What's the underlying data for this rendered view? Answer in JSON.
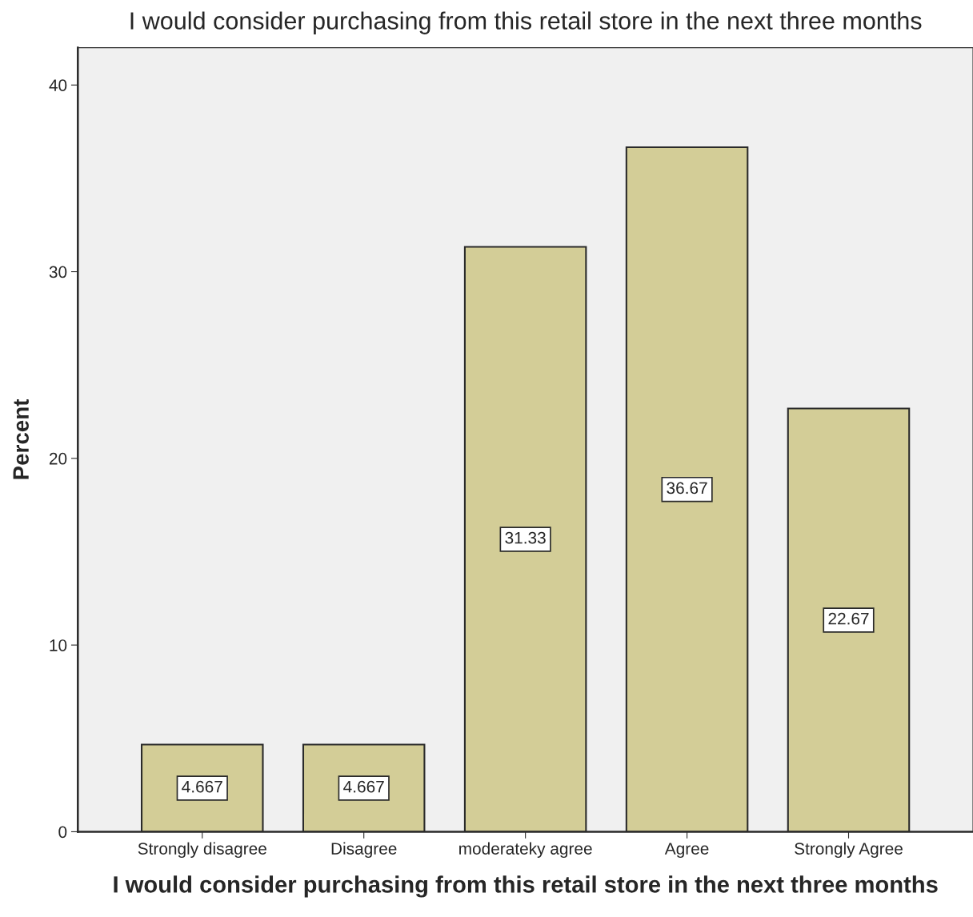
{
  "chart_data": {
    "type": "bar",
    "title": "I would consider purchasing from this retail store in the next three months",
    "xlabel": "I would consider purchasing from this retail store in the next three months",
    "ylabel": "Percent",
    "categories": [
      "Strongly disagree",
      "Disagree",
      "moderateky agree",
      "Agree",
      "Strongly Agree"
    ],
    "values": [
      4.667,
      4.667,
      31.33,
      36.67,
      22.67
    ],
    "color": "#d3cd97",
    "ylim": [
      0,
      42
    ],
    "yticks": [
      0,
      10,
      20,
      30,
      40
    ],
    "grid": false,
    "data_labels": true
  }
}
